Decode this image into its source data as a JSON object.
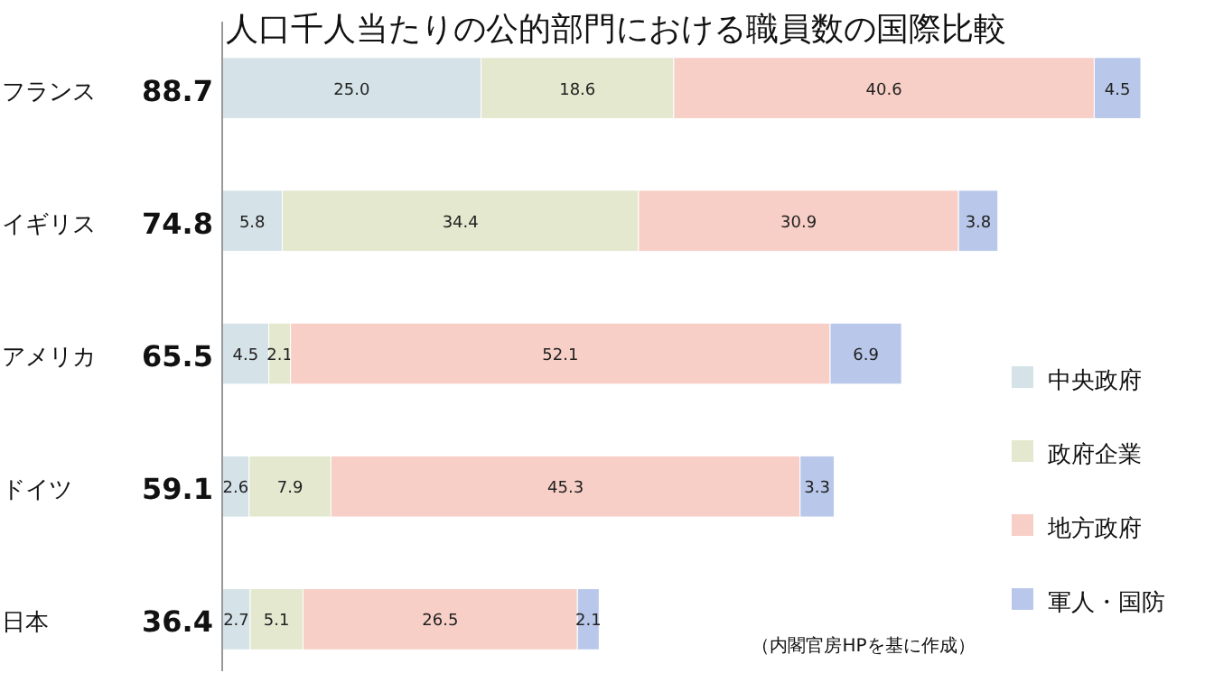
{
  "chart_data": {
    "type": "bar",
    "orientation": "horizontal",
    "stacked": true,
    "title": "人口千人当たりの公的部門における職員数の国際比較",
    "categories": [
      "フランス",
      "イギリス",
      "アメリカ",
      "ドイツ",
      "日本"
    ],
    "totals": [
      "88.7",
      "74.8",
      "65.5",
      "59.1",
      "36.4"
    ],
    "series": [
      {
        "name": "中央政府",
        "color": "#d5e3e8",
        "values": [
          25.0,
          5.8,
          4.5,
          2.6,
          2.7
        ],
        "value_labels": [
          "25.0",
          "5.8",
          "4.5",
          "2.6",
          "2.7"
        ]
      },
      {
        "name": "政府企業",
        "color": "#e3e8cf",
        "values": [
          18.6,
          34.4,
          2.1,
          7.9,
          5.1
        ],
        "value_labels": [
          "18.6",
          "34.4",
          "2.1",
          "7.9",
          "5.1"
        ]
      },
      {
        "name": "地方政府",
        "color": "#f7cfc6",
        "values": [
          40.6,
          30.9,
          52.1,
          45.3,
          26.5
        ],
        "value_labels": [
          "40.6",
          "30.9",
          "52.1",
          "45.3",
          "26.5"
        ]
      },
      {
        "name": "軍人・国防",
        "color": "#b9c8ea",
        "values": [
          4.5,
          3.8,
          6.9,
          3.3,
          2.1
        ],
        "value_labels": [
          "4.5",
          "3.8",
          "6.9",
          "3.3",
          "2.1"
        ]
      }
    ],
    "legend": "right",
    "annotations": [
      "（内閣官房HPを基に作成）"
    ]
  }
}
